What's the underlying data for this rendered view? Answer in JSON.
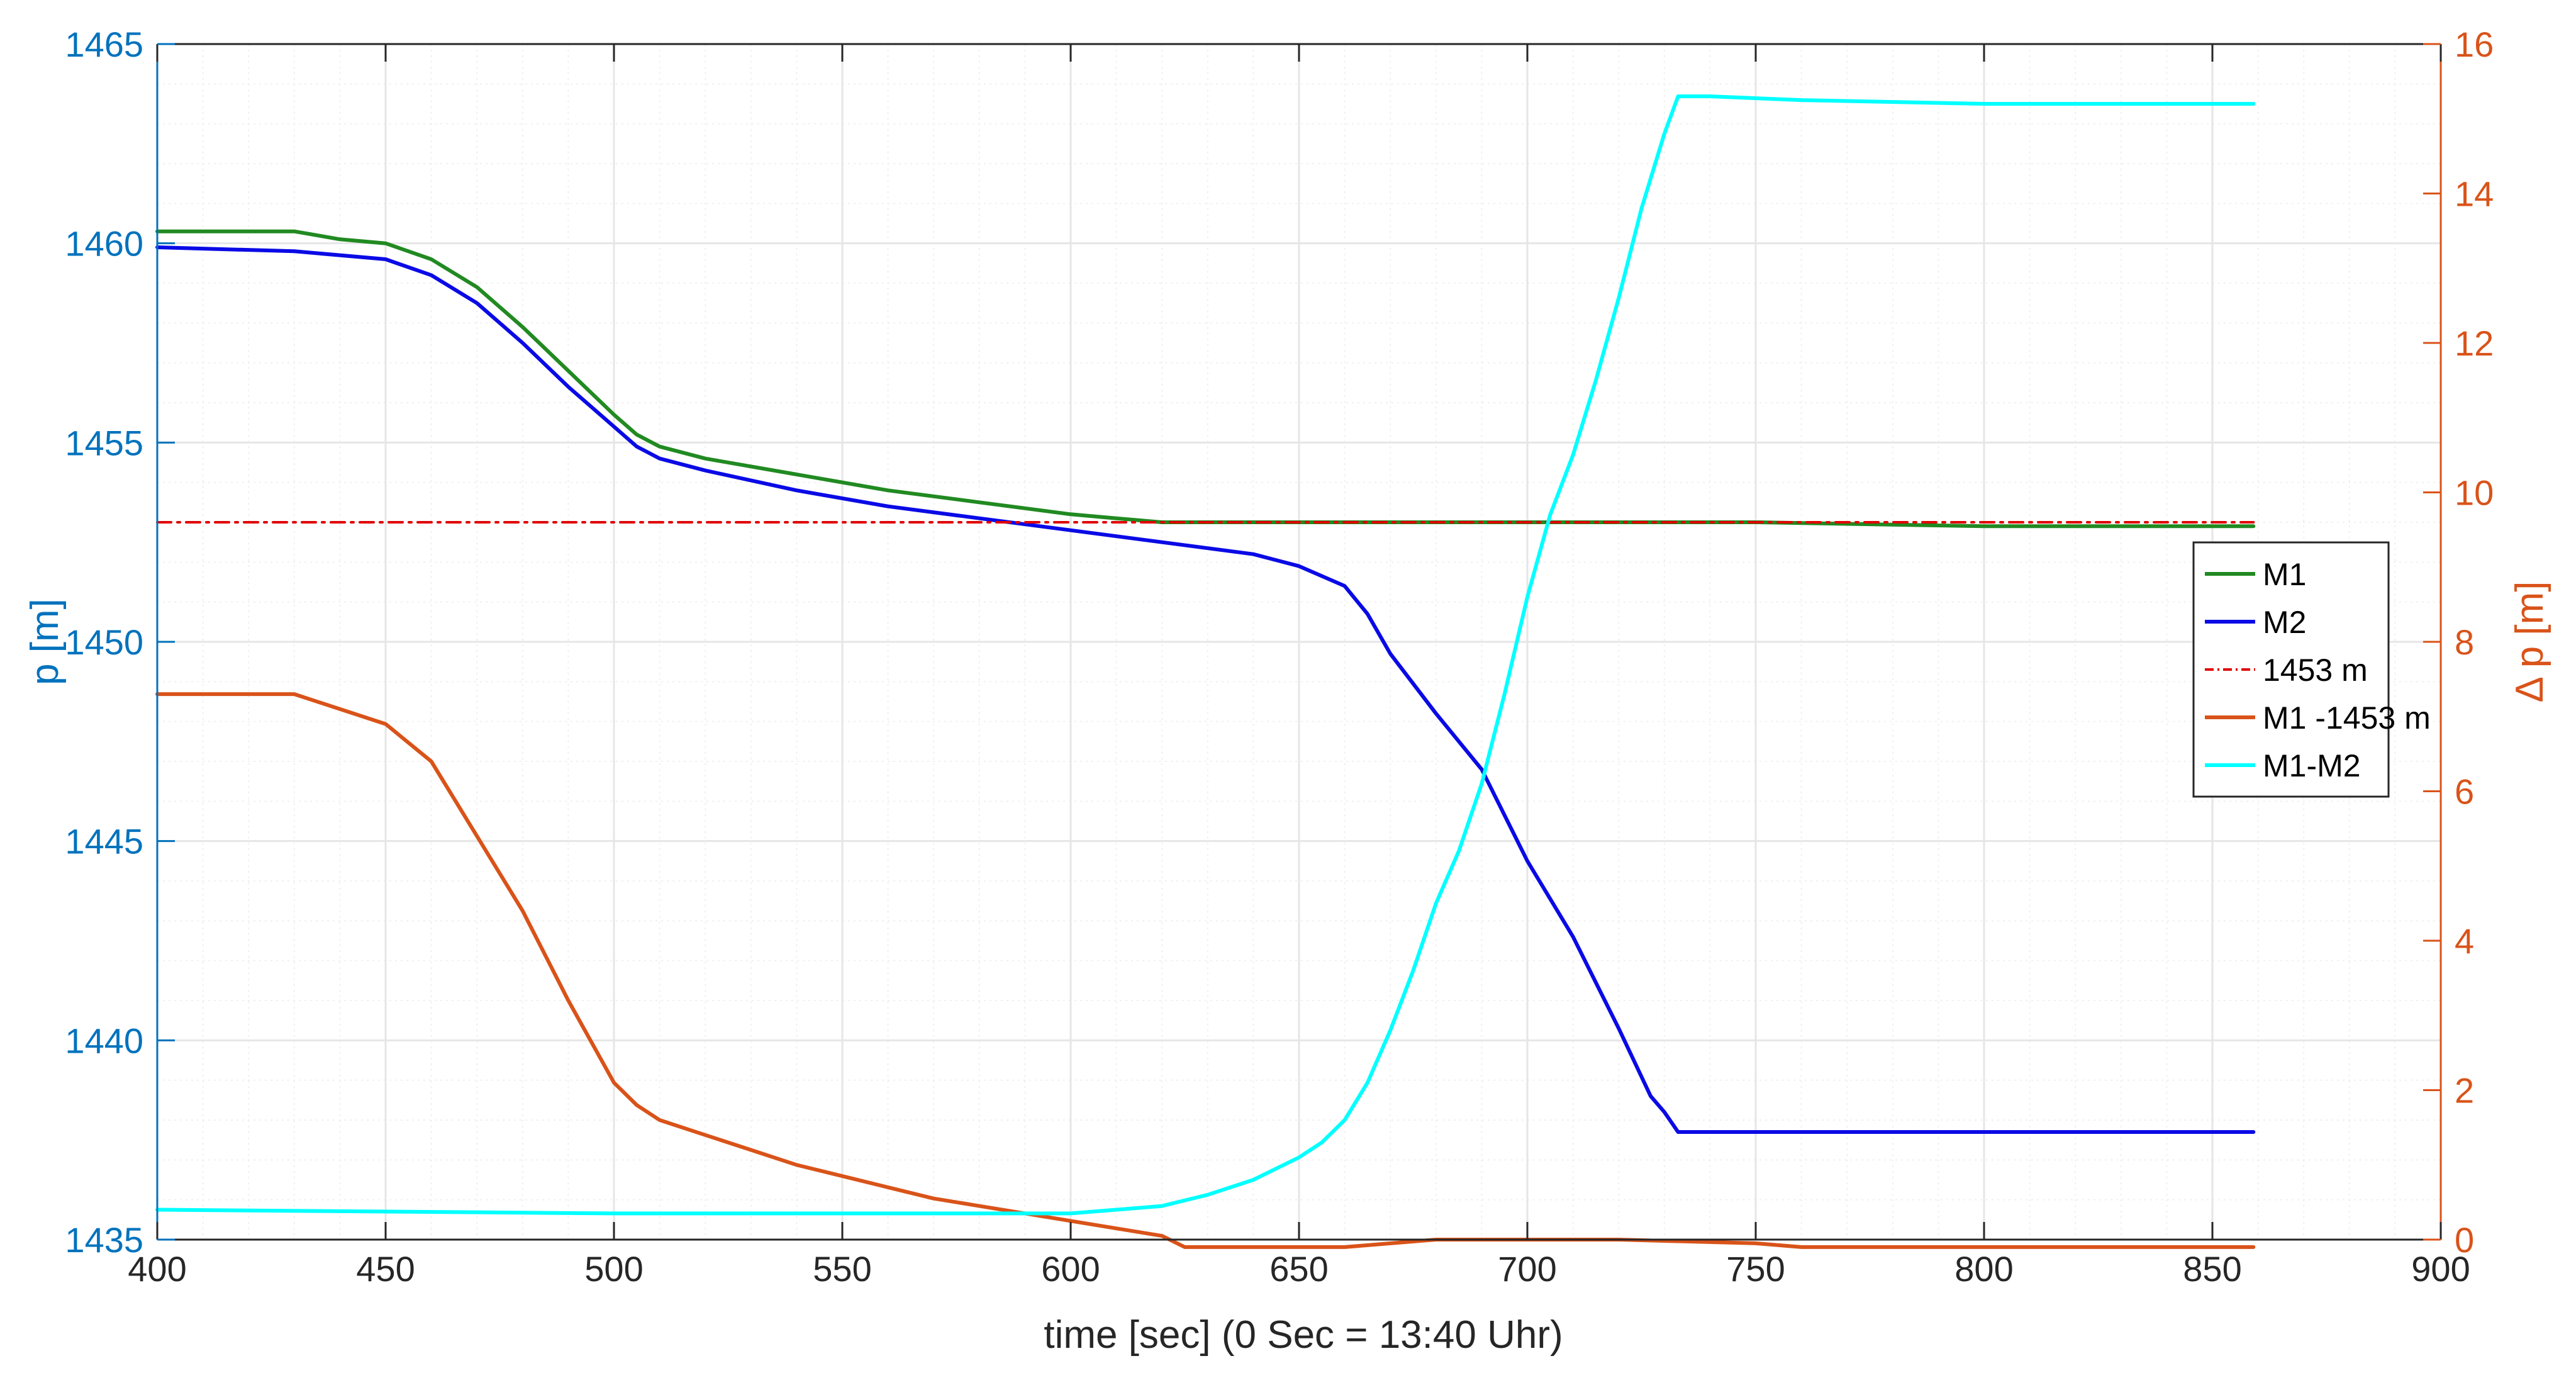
{
  "chart_data": {
    "type": "line",
    "title": "",
    "xlabel": "time [sec] (0 Sec = 13:40 Uhr)",
    "ylabel_left": "p [m]",
    "ylabel_right": "Δ p [m]",
    "xlim": [
      400,
      900
    ],
    "ylim_left": [
      1435,
      1465
    ],
    "ylim_right": [
      0,
      16
    ],
    "xticks": [
      400,
      450,
      500,
      550,
      600,
      650,
      700,
      750,
      800,
      850,
      900
    ],
    "yticks_left": [
      1435,
      1440,
      1445,
      1450,
      1455,
      1460,
      1465
    ],
    "yticks_right": [
      0,
      2,
      4,
      6,
      8,
      10,
      12,
      14,
      16
    ],
    "grid": true,
    "minor_grid": true,
    "legend_position": "right",
    "colors": {
      "left_axis": "#0072BD",
      "right_axis": "#D95319",
      "grid": "#e6e6e6",
      "minor_grid": "#f0f0f0"
    },
    "series": [
      {
        "name": "M1",
        "axis": "left",
        "color": "#218a21",
        "style": "solid",
        "x": [
          400,
          430,
          440,
          450,
          460,
          470,
          480,
          490,
          500,
          505,
          510,
          520,
          540,
          560,
          580,
          600,
          610,
          620,
          630,
          700,
          750,
          800,
          859
        ],
        "y": [
          1460.3,
          1460.3,
          1460.1,
          1460.0,
          1459.6,
          1458.9,
          1457.9,
          1456.8,
          1455.7,
          1455.2,
          1454.9,
          1454.6,
          1454.2,
          1453.8,
          1453.5,
          1453.2,
          1453.1,
          1453.0,
          1453.0,
          1453.0,
          1453.0,
          1452.9,
          1452.9
        ]
      },
      {
        "name": "M2",
        "axis": "left",
        "color": "#0a0ae6",
        "style": "solid",
        "x": [
          400,
          430,
          450,
          460,
          470,
          480,
          490,
          500,
          505,
          510,
          520,
          540,
          560,
          580,
          600,
          620,
          640,
          650,
          660,
          665,
          670,
          680,
          690,
          700,
          710,
          720,
          727,
          730,
          733,
          760,
          859
        ],
        "y": [
          1459.9,
          1459.8,
          1459.6,
          1459.2,
          1458.5,
          1457.5,
          1456.4,
          1455.4,
          1454.9,
          1454.6,
          1454.3,
          1453.8,
          1453.4,
          1453.1,
          1452.8,
          1452.5,
          1452.2,
          1451.9,
          1451.4,
          1450.7,
          1449.7,
          1448.2,
          1446.8,
          1444.5,
          1442.6,
          1440.3,
          1438.6,
          1438.2,
          1437.7,
          1437.7,
          1437.7
        ]
      },
      {
        "name": "1453 m",
        "axis": "left",
        "color": "#e00000",
        "style": "dashdot",
        "x": [
          400,
          859
        ],
        "y": [
          1453,
          1453
        ]
      },
      {
        "name": "M1 -1453 m",
        "axis": "right",
        "color": "#D95319",
        "style": "solid",
        "x": [
          400,
          430,
          440,
          450,
          460,
          470,
          480,
          490,
          500,
          505,
          510,
          520,
          530,
          540,
          550,
          560,
          570,
          580,
          590,
          600,
          610,
          620,
          625,
          660,
          680,
          700,
          720,
          750,
          760,
          859
        ],
        "y": [
          7.3,
          7.3,
          7.1,
          6.9,
          6.4,
          5.4,
          4.4,
          3.2,
          2.1,
          1.8,
          1.6,
          1.4,
          1.2,
          1.0,
          0.85,
          0.7,
          0.55,
          0.45,
          0.35,
          0.25,
          0.15,
          0.05,
          -0.1,
          -0.1,
          0.0,
          0.0,
          0.0,
          -0.05,
          -0.1,
          -0.1
        ]
      },
      {
        "name": "M1-M2",
        "axis": "right",
        "color": "#00ffff",
        "style": "solid",
        "x": [
          400,
          500,
          600,
          620,
          630,
          640,
          650,
          655,
          660,
          665,
          670,
          675,
          680,
          685,
          690,
          695,
          700,
          705,
          710,
          715,
          720,
          725,
          730,
          733,
          740,
          760,
          800,
          859
        ],
        "y": [
          0.4,
          0.35,
          0.35,
          0.45,
          0.6,
          0.8,
          1.1,
          1.3,
          1.6,
          2.1,
          2.8,
          3.6,
          4.5,
          5.2,
          6.1,
          7.3,
          8.6,
          9.7,
          10.5,
          11.5,
          12.6,
          13.8,
          14.8,
          15.3,
          15.3,
          15.25,
          15.2,
          15.2
        ]
      }
    ]
  }
}
